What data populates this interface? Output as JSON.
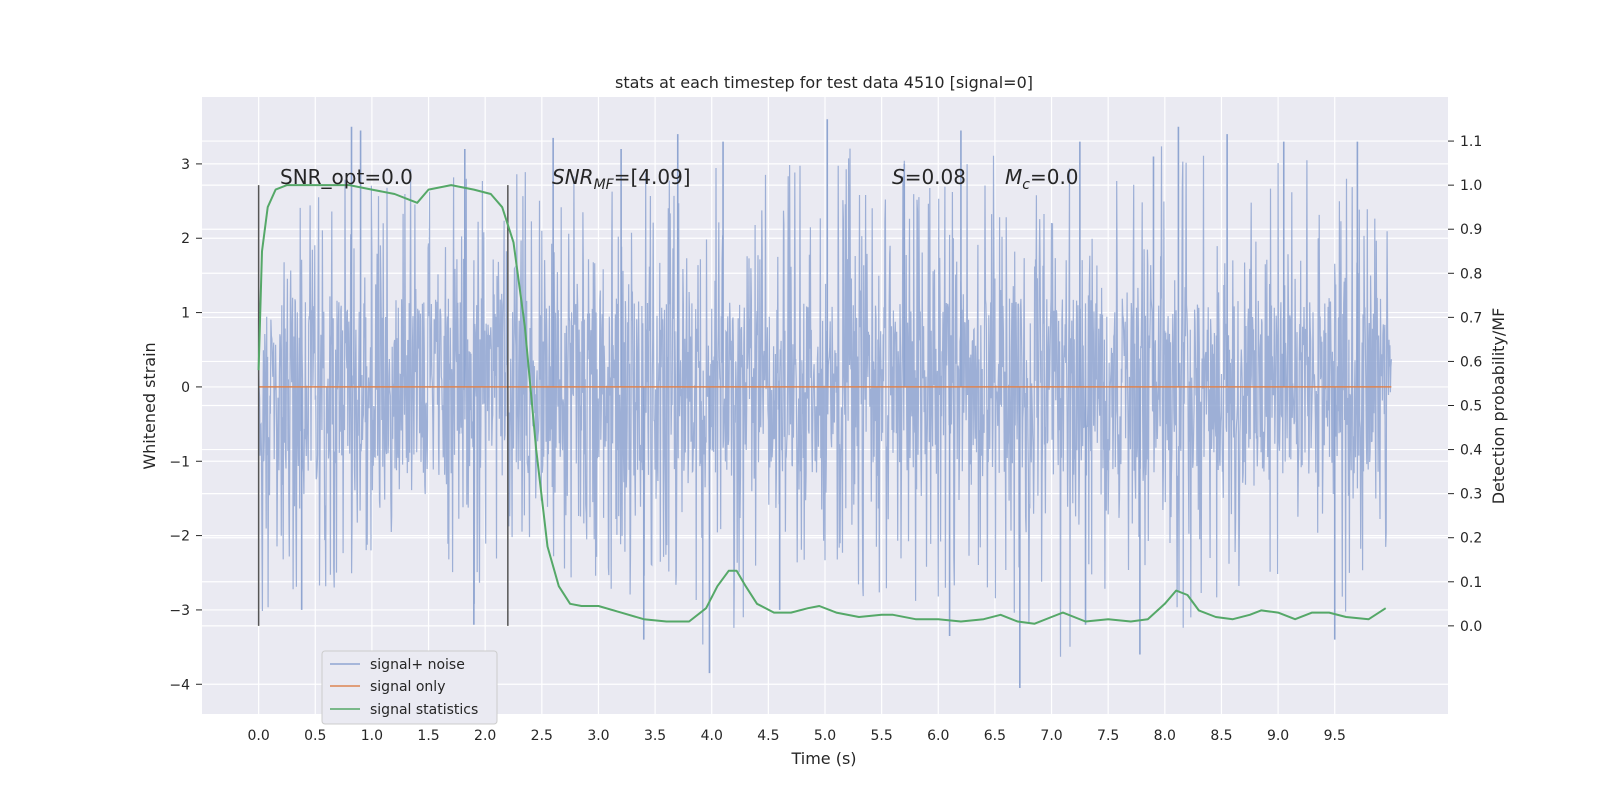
{
  "chart_data": {
    "type": "line",
    "title": "stats at each timestep for test data 4510 [signal=0]",
    "xlabel": "Time (s)",
    "ylabel": "Whitened strain",
    "y2label": "Detection probability/MF",
    "xlim": [
      -0.5,
      10.5
    ],
    "ylim": [
      -4.4,
      3.9
    ],
    "y2lim": [
      -0.2,
      1.2
    ],
    "x_ticks": [
      "0.0",
      "0.5",
      "1.0",
      "1.5",
      "2.0",
      "2.5",
      "3.0",
      "3.5",
      "4.0",
      "4.5",
      "5.0",
      "5.5",
      "6.0",
      "6.5",
      "7.0",
      "7.5",
      "8.0",
      "8.5",
      "9.0",
      "9.5"
    ],
    "y_ticks": [
      "−4",
      "−3",
      "−2",
      "−1",
      "0",
      "1",
      "2",
      "3"
    ],
    "y2_ticks": [
      "0.0",
      "0.1",
      "0.2",
      "0.3",
      "0.4",
      "0.5",
      "0.6",
      "0.7",
      "0.8",
      "0.9",
      "1.0",
      "1.1"
    ],
    "grid": true,
    "legend_position": "lower-left",
    "annotations": {
      "snr_opt": "SNR_opt=0.0",
      "snr_mf_italic": "SNR",
      "snr_mf_sub": "MF",
      "snr_mf_value": "=[4.09]",
      "s_italic": "S",
      "s_value": "=0.08",
      "mc_italic": "M",
      "mc_sub": "c",
      "mc_value": "=0.0"
    },
    "vlines_x": [
      0.0,
      2.2
    ],
    "series": [
      {
        "name": "signal+ noise",
        "color": "#8fa5d1",
        "x_range": [
          0.0,
          10.0
        ],
        "envelope": {
          "x": [
            0.0,
            0.5,
            1.0,
            1.5,
            2.0,
            2.5,
            3.0,
            3.5,
            4.0,
            4.5,
            5.0,
            5.5,
            6.0,
            6.5,
            7.0,
            7.5,
            8.0,
            8.5,
            9.0,
            9.5,
            10.0
          ],
          "max": [
            2.6,
            2.8,
            3.5,
            3.1,
            3.0,
            3.3,
            3.0,
            3.2,
            3.4,
            3.3,
            3.6,
            3.2,
            3.4,
            3.3,
            3.2,
            3.1,
            3.5,
            3.3,
            3.4,
            3.3,
            2.8
          ],
          "min": [
            -3.2,
            -3.0,
            -2.6,
            -2.6,
            -3.2,
            -2.8,
            -2.8,
            -3.4,
            -3.8,
            -3.0,
            -2.9,
            -3.0,
            -3.3,
            -3.0,
            -4.0,
            -3.2,
            -3.6,
            -3.1,
            -3.0,
            -3.4,
            -2.6
          ]
        },
        "spikes_up": [
          [
            0.82,
            3.5
          ],
          [
            0.9,
            3.45
          ],
          [
            1.82,
            3.2
          ],
          [
            2.6,
            3.35
          ],
          [
            3.2,
            3.2
          ],
          [
            3.7,
            3.4
          ],
          [
            4.1,
            3.3
          ],
          [
            5.02,
            3.6
          ],
          [
            5.7,
            3.0
          ],
          [
            6.2,
            3.45
          ],
          [
            7.25,
            3.3
          ],
          [
            7.9,
            3.1
          ],
          [
            8.12,
            3.5
          ],
          [
            8.55,
            3.4
          ],
          [
            9.05,
            3.3
          ],
          [
            9.7,
            3.3
          ]
        ],
        "spikes_down": [
          [
            0.38,
            -3.0
          ],
          [
            1.9,
            -3.2
          ],
          [
            3.4,
            -3.4
          ],
          [
            3.98,
            -3.85
          ],
          [
            4.6,
            -3.0
          ],
          [
            6.1,
            -3.35
          ],
          [
            6.72,
            -4.05
          ],
          [
            7.3,
            -3.2
          ],
          [
            7.78,
            -3.6
          ],
          [
            9.5,
            -3.4
          ]
        ]
      },
      {
        "name": "signal only",
        "color": "#dd8452",
        "x": [
          0.0,
          10.0
        ],
        "values": [
          0.0,
          0.0
        ]
      },
      {
        "name": "signal statistics",
        "color": "#55a868",
        "axis": "right",
        "x": [
          0.0,
          0.03,
          0.08,
          0.15,
          0.25,
          0.4,
          0.6,
          0.8,
          1.0,
          1.2,
          1.3,
          1.4,
          1.5,
          1.7,
          1.9,
          2.05,
          2.15,
          2.25,
          2.35,
          2.45,
          2.55,
          2.65,
          2.75,
          2.85,
          3.0,
          3.2,
          3.4,
          3.6,
          3.8,
          3.95,
          4.05,
          4.15,
          4.22,
          4.3,
          4.4,
          4.55,
          4.7,
          4.85,
          4.95,
          5.1,
          5.3,
          5.5,
          5.6,
          5.8,
          6.0,
          6.2,
          6.4,
          6.55,
          6.7,
          6.85,
          7.0,
          7.1,
          7.3,
          7.5,
          7.7,
          7.85,
          8.0,
          8.1,
          8.2,
          8.3,
          8.45,
          8.6,
          8.75,
          8.85,
          9.0,
          9.15,
          9.3,
          9.45,
          9.6,
          9.8,
          9.95
        ],
        "values": [
          0.58,
          0.85,
          0.95,
          0.99,
          1.0,
          1.0,
          1.0,
          1.0,
          0.99,
          0.98,
          0.97,
          0.96,
          0.99,
          1.0,
          0.99,
          0.98,
          0.95,
          0.87,
          0.68,
          0.4,
          0.18,
          0.09,
          0.05,
          0.045,
          0.045,
          0.03,
          0.015,
          0.01,
          0.01,
          0.04,
          0.09,
          0.125,
          0.125,
          0.09,
          0.05,
          0.03,
          0.03,
          0.04,
          0.045,
          0.03,
          0.02,
          0.025,
          0.025,
          0.015,
          0.015,
          0.01,
          0.015,
          0.025,
          0.01,
          0.005,
          0.02,
          0.03,
          0.01,
          0.015,
          0.01,
          0.015,
          0.05,
          0.08,
          0.07,
          0.035,
          0.02,
          0.015,
          0.025,
          0.035,
          0.03,
          0.015,
          0.03,
          0.03,
          0.02,
          0.015,
          0.04
        ]
      }
    ]
  }
}
